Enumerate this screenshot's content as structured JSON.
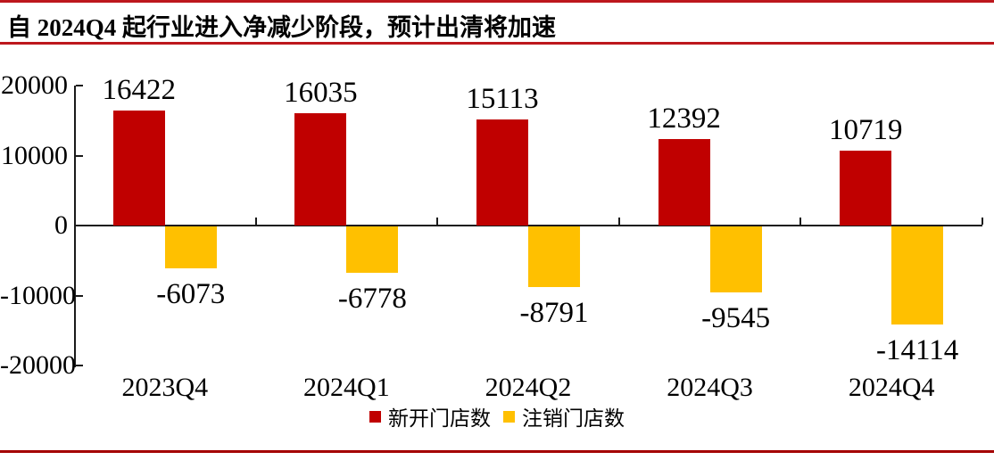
{
  "page": {
    "title": "自 2024Q4 起行业进入净减少阶段，预计出清将加速"
  },
  "chart_data": {
    "type": "bar",
    "categories": [
      "2023Q4",
      "2024Q1",
      "2024Q2",
      "2024Q3",
      "2024Q4"
    ],
    "series": [
      {
        "name": "新开门店数",
        "color": "#C00000",
        "values": [
          16422,
          16035,
          15113,
          12392,
          10719
        ]
      },
      {
        "name": "注销门店数",
        "color": "#FFC000",
        "values": [
          -6073,
          -6778,
          -8791,
          -9545,
          -14114
        ]
      }
    ],
    "yticks": [
      20000,
      10000,
      0,
      -10000,
      -20000
    ],
    "ylim": [
      -20000,
      20000
    ],
    "grid": false,
    "legend_position": "bottom",
    "data_labels": true
  },
  "colors": {
    "bar_red": "#C00000",
    "bar_yellow": "#FFC000",
    "top_rule": "#BD171D",
    "title_rule": "#BD171D",
    "bottom_rule": "#A40000",
    "axis": "#1a1a1a"
  }
}
